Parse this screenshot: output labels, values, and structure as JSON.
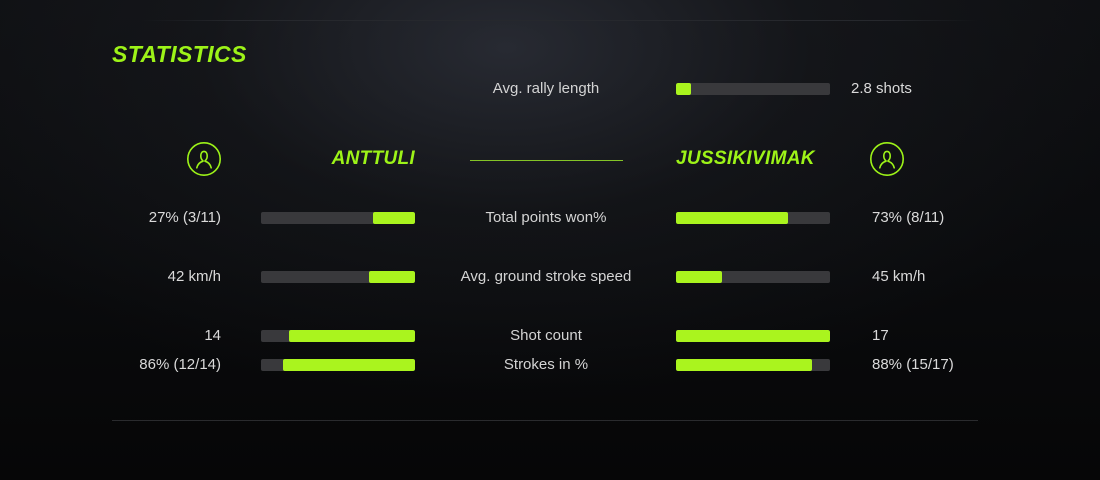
{
  "colors": {
    "accent": "#9df318",
    "bar_fill": "#aaf41e",
    "bar_track": "#39393c",
    "background": "#0a0b0d"
  },
  "title": "STATISTICS",
  "rally": {
    "label": "Avg. rally length",
    "value": "2.8 shots",
    "pct": 10
  },
  "players": {
    "left": {
      "name": "ANTTULI",
      "icon": "person-circle-icon"
    },
    "right": {
      "name": "JUSSIKIVIMAK",
      "icon": "person-circle-icon"
    }
  },
  "stats": [
    {
      "label": "Total points won%",
      "left_value": "27% (3/11)",
      "left_pct": 27,
      "right_value": "73% (8/11)",
      "right_pct": 73
    },
    {
      "label": "Avg. ground stroke speed",
      "left_value": "42 km/h",
      "left_pct": 30,
      "right_value": "45 km/h",
      "right_pct": 30
    },
    {
      "label": "Shot count",
      "left_value": "14",
      "left_pct": 82,
      "right_value": "17",
      "right_pct": 100
    },
    {
      "label": "Strokes in %",
      "left_value": "86% (12/14)",
      "left_pct": 86,
      "right_value": "88% (15/17)",
      "right_pct": 88
    }
  ]
}
